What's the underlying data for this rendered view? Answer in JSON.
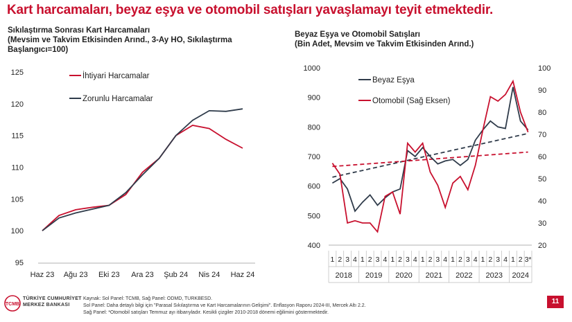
{
  "title": "Kart harcamaları, beyaz eşya ve otomobil satışları yavaşlamayı teyit etmektedir.",
  "chart_data": [
    {
      "type": "line",
      "title_lines": [
        "Sıkılaştırma Sonrası Kart Harcamaları",
        "(Mevsim ve Takvim Etkisinden Arınd., 3-Ay HO, Sıkılaştırma",
        "Başlangıcı=100)"
      ],
      "x": [
        "Haz 23",
        "Tem 23",
        "Ağu 23",
        "Eyl 23",
        "Eki 23",
        "Kas 23",
        "Ara 23",
        "Oca 24",
        "Şub 24",
        "Mar 24",
        "Nis 24",
        "May 24",
        "Haz 24"
      ],
      "tick_labels": [
        "Haz 23",
        "Ağu 23",
        "Eki 23",
        "Ara 23",
        "Şub 24",
        "Nis 24",
        "Haz 24"
      ],
      "ylim": [
        95,
        125
      ],
      "yticks": [
        "95",
        "100",
        "105",
        "110",
        "115",
        "120",
        "125"
      ],
      "grid": false,
      "legend": "top-left",
      "series": [
        {
          "name": "İhtiyari Harcamalar",
          "color": "#c8102e",
          "values": [
            100.0,
            102.4,
            103.3,
            103.7,
            104.0,
            105.7,
            109.2,
            111.4,
            115.0,
            116.6,
            116.1,
            114.4,
            113.0
          ]
        },
        {
          "name": "Zorunlu Harcamalar",
          "color": "#2f3b4a",
          "values": [
            100.0,
            102.0,
            102.8,
            103.4,
            104.0,
            106.0,
            108.8,
            111.4,
            115.0,
            117.4,
            118.9,
            118.8,
            119.2
          ]
        }
      ]
    },
    {
      "type": "line",
      "title_lines": [
        "Beyaz Eşya ve Otomobil Satışları",
        "(Bin Adet, Mevsim ve Takvim Etkisinden Arınd.)"
      ],
      "x_quarter_labels": [
        "1",
        "2",
        "3",
        "4",
        "1",
        "2",
        "3",
        "4",
        "1",
        "2",
        "3",
        "4",
        "1",
        "2",
        "3",
        "4",
        "1",
        "2",
        "3",
        "4",
        "1",
        "2",
        "3",
        "4",
        "1",
        "2",
        "3*"
      ],
      "year_labels": [
        "2018",
        "2019",
        "2020",
        "2021",
        "2022",
        "2023",
        "2024"
      ],
      "ylim_left": [
        400,
        1000
      ],
      "yticks_left": [
        "400",
        "500",
        "600",
        "700",
        "800",
        "900",
        "1000"
      ],
      "ylim_right": [
        20,
        100
      ],
      "yticks_right": [
        "20",
        "30",
        "40",
        "50",
        "60",
        "70",
        "80",
        "90",
        "100"
      ],
      "legend": "top-left",
      "series": [
        {
          "name": "Beyaz Eşya",
          "axis": "left",
          "color": "#2f3b4a",
          "values": [
            610,
            625,
            590,
            515,
            545,
            570,
            535,
            560,
            580,
            590,
            720,
            700,
            730,
            700,
            675,
            685,
            690,
            670,
            690,
            755,
            790,
            820,
            800,
            795,
            935,
            820,
            790
          ]
        },
        {
          "name": "Otomobil (Sağ Eksen)",
          "axis": "right",
          "color": "#c8102e",
          "values": [
            57,
            52,
            30,
            31,
            30,
            30,
            26,
            42,
            44,
            34,
            66,
            62,
            66,
            53,
            47,
            37,
            48,
            51,
            45,
            56,
            72,
            87,
            85,
            88,
            94,
            80,
            71
          ]
        }
      ],
      "trends": [
        {
          "axis": "left",
          "color": "#2f3b4a",
          "from": 630,
          "to": 778
        },
        {
          "axis": "right",
          "color": "#c8102e",
          "from": 55.5,
          "to": 62.0
        }
      ]
    }
  ],
  "footer": {
    "line1": "Kaynak: Sol Panel: TCMB, Sağ Panel: ODMD, TURKBESD.",
    "line2": "Sol Panel: Daha detaylı bilgi için \"Parasal Sıkılaştırma ve Kart Harcamalarının Gelişimi\". Enflasyon Raporu 2024-III, Mercek Altı 2.2.",
    "line3": "Sağ Panel: *Otomobil satışları Temmuz ayı itibarıyladır. Kesikli çizgiler 2010-2018 dönemi eğilimini göstermektedir."
  },
  "logo": {
    "mark": "TCMB",
    "line1": "TÜRKİYE CUMHURİYET",
    "line2": "MERKEZ BANKASI",
    "color": "#c8102e"
  },
  "page_number": "11"
}
